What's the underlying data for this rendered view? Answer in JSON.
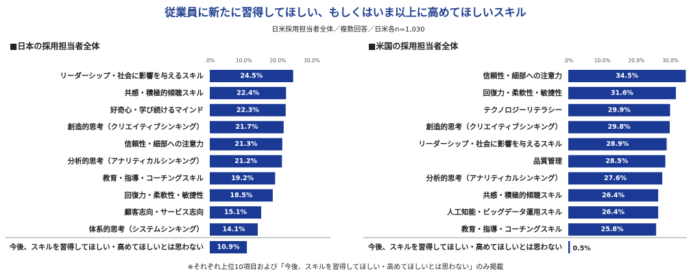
{
  "title": "従業員に新たに習得してほしい、もしくはいま以上に高めてほしいスキル",
  "subtitle": "日米採用担当者全体／複数回答／日米各n=1,030",
  "footnote": "※それぞれ上位10項目および「今後、スキルを習得してほしい・高めてほしいとは思わない」のみ掲載",
  "chart_data": [
    {
      "type": "hbar",
      "title": "■日本の採用担当者全体",
      "color": "#1b3a96",
      "categories": [
        "リーダーシップ・社会に影響を与えるスキル",
        "共感・積極的傾聴スキル",
        "好奇心・学び続けるマインド",
        "創造的思考（クリエイティブシンキング）",
        "信頼性・細部への注意力",
        "分析的思考（アナリティカルシンキング）",
        "教育・指導・コーチングスキル",
        "回復力・柔軟性・敏捷性",
        "顧客志向・サービス志向",
        "体系的思考（システムシンキング）",
        "今後、スキルを習得してほしい・高めてほしいとは思わない"
      ],
      "values": [
        24.5,
        22.4,
        22.3,
        21.7,
        21.3,
        21.2,
        19.2,
        18.5,
        15.1,
        14.1,
        10.9
      ],
      "value_labels": [
        "24.5%",
        "22.4%",
        "22.3%",
        "21.7%",
        "21.3%",
        "21.2%",
        "19.2%",
        "18.5%",
        "15.1%",
        "14.1%",
        "10.9%"
      ],
      "xlim": [
        0,
        30
      ],
      "xticks": [
        {
          "value": 0,
          "label": ".0%"
        },
        {
          "value": 10,
          "label": "10.0%"
        },
        {
          "value": 20,
          "label": "20.0%"
        },
        {
          "value": 30,
          "label": "30.0%"
        }
      ]
    },
    {
      "type": "hbar",
      "title": "■米国の採用担当者全体",
      "color": "#1b3a96",
      "categories": [
        "信頼性・細部への注意力",
        "回復力・柔軟性・敏捷性",
        "テクノロジーリテラシー",
        "創造的思考（クリエイティブシンキング）",
        "リーダーシップ・社会に影響を与えるスキル",
        "品質管理",
        "分析的思考（アナリティカルシンキング）",
        "共感・積極的傾聴スキル",
        "人工知能・ビッグデータ運用スキル",
        "教育・指導・コーチングスキル",
        "今後、スキルを習得してほしい・高めてほしいとは思わない"
      ],
      "values": [
        34.5,
        31.6,
        29.9,
        29.8,
        28.9,
        28.5,
        27.6,
        26.4,
        26.4,
        25.8,
        0.5
      ],
      "value_labels": [
        "34.5%",
        "31.6%",
        "29.9%",
        "29.8%",
        "28.9%",
        "28.5%",
        "27.6%",
        "26.4%",
        "26.4%",
        "25.8%",
        "0.5%"
      ],
      "xlim": [
        0,
        30
      ],
      "xticks": [
        {
          "value": 0,
          "label": ".0%"
        },
        {
          "value": 10,
          "label": "10.0%"
        },
        {
          "value": 20,
          "label": "20.0%"
        },
        {
          "value": 30,
          "label": "30.0%"
        }
      ]
    }
  ]
}
